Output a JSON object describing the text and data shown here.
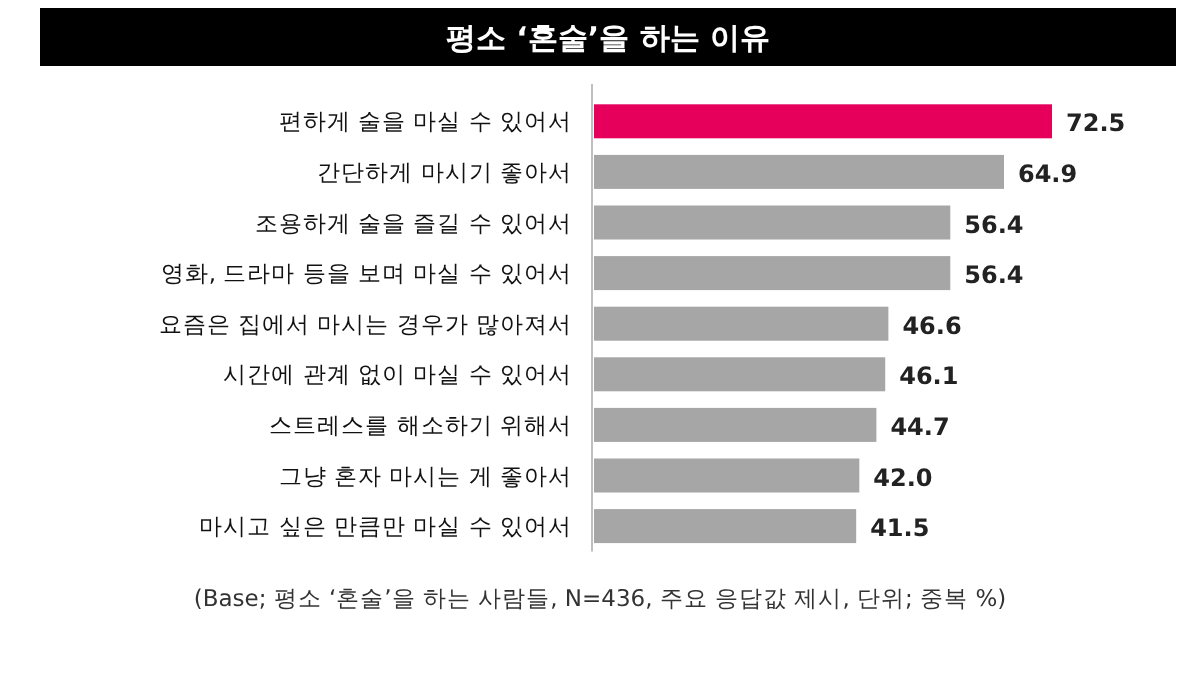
{
  "chart_data": {
    "type": "bar",
    "orientation": "horizontal",
    "title": "평소 ‘혼술’을 하는 이유",
    "categories": [
      "편하게 술을 마실 수 있어서",
      "간단하게 마시기 좋아서",
      "조용하게 술을 즐길 수 있어서",
      "영화, 드라마 등을 보며 마실 수 있어서",
      "요즘은 집에서 마시는 경우가 많아져서",
      "시간에 관계 없이 마실 수 있어서",
      "스트레스를 해소하기 위해서",
      "그냥 혼자 마시는 게 좋아서",
      "마시고 싶은 만큼만 마실 수 있어서"
    ],
    "values": [
      72.5,
      64.9,
      56.4,
      56.4,
      46.6,
      46.1,
      44.7,
      42.0,
      41.5
    ],
    "value_labels": [
      "72.5",
      "64.9",
      "56.4",
      "56.4",
      "46.6",
      "46.1",
      "44.7",
      "42.0",
      "41.5"
    ],
    "colors": [
      "#e6005c",
      "#a6a6a6",
      "#a6a6a6",
      "#a6a6a6",
      "#a6a6a6",
      "#a6a6a6",
      "#a6a6a6",
      "#a6a6a6",
      "#a6a6a6"
    ],
    "annotations": [
      "(Base; 평소 ‘혼술’을 하는 사람들, N=436, 주요 응답값 제시, 단위; 중복 %)"
    ]
  }
}
